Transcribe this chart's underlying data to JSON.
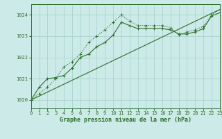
{
  "title": "Graphe pression niveau de la mer (hPa)",
  "background_color": "#cceae7",
  "grid_color": "#aad4cf",
  "line_color": "#2d6e2d",
  "x_min": 0,
  "x_max": 23,
  "y_min": 1019.6,
  "y_max": 1024.5,
  "yticks": [
    1020,
    1021,
    1022,
    1023,
    1024
  ],
  "xticks": [
    0,
    1,
    2,
    3,
    4,
    5,
    6,
    7,
    8,
    9,
    10,
    11,
    12,
    13,
    14,
    15,
    16,
    17,
    18,
    19,
    20,
    21,
    22,
    23
  ],
  "series1_x": [
    0,
    1,
    2,
    3,
    4,
    5,
    6,
    7,
    8,
    9,
    10,
    11,
    12,
    13,
    14,
    15,
    16,
    17,
    18,
    19,
    20,
    21,
    22,
    23
  ],
  "series1_y": [
    1020.0,
    1020.3,
    1020.6,
    1021.0,
    1021.55,
    1021.8,
    1022.15,
    1022.7,
    1023.0,
    1023.3,
    1023.65,
    1024.0,
    1023.7,
    1023.5,
    1023.5,
    1023.5,
    1023.5,
    1023.4,
    1023.05,
    1023.2,
    1023.3,
    1023.45,
    1024.0,
    1024.25
  ],
  "series2_x": [
    0,
    1,
    2,
    3,
    4,
    5,
    6,
    7,
    8,
    9,
    10,
    11,
    12,
    13,
    14,
    15,
    16,
    17,
    18,
    19,
    20,
    21,
    22,
    23
  ],
  "series2_y": [
    1020.0,
    1020.6,
    1021.0,
    1021.05,
    1021.15,
    1021.5,
    1022.0,
    1022.15,
    1022.5,
    1022.7,
    1023.05,
    1023.65,
    1023.5,
    1023.35,
    1023.35,
    1023.35,
    1023.35,
    1023.3,
    1023.1,
    1023.1,
    1023.2,
    1023.35,
    1023.95,
    1024.1
  ],
  "series3_x": [
    0,
    23
  ],
  "series3_y": [
    1020.0,
    1024.25
  ]
}
